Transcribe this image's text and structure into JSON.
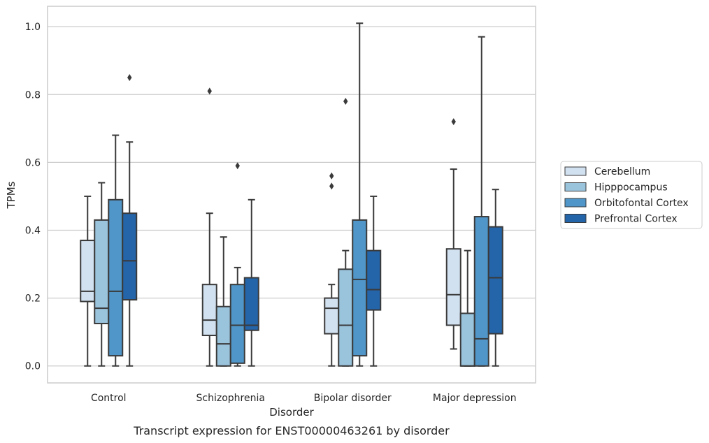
{
  "chart_data": {
    "type": "box",
    "title": "",
    "caption": "Transcript expression for ENST00000463261 by disorder",
    "xlabel": "Disorder",
    "ylabel": "TPMs",
    "ylim": [
      -0.05,
      1.06
    ],
    "yticks": [
      0.0,
      0.2,
      0.4,
      0.6,
      0.8,
      1.0
    ],
    "ytick_labels": [
      "0.0",
      "0.2",
      "0.4",
      "0.6",
      "0.8",
      "1.0"
    ],
    "grid": "horizontal",
    "legend_position": "right",
    "categories": [
      "Control",
      "Schizophrenia",
      "Bipolar disorder",
      "Major depression"
    ],
    "series": [
      {
        "name": "Cerebellum",
        "color": "#d2e1f0",
        "boxes": [
          {
            "whisker_low": 0.0,
            "q1": 0.19,
            "median": 0.22,
            "q3": 0.37,
            "whisker_high": 0.5,
            "outliers": []
          },
          {
            "whisker_low": 0.0,
            "q1": 0.09,
            "median": 0.135,
            "q3": 0.24,
            "whisker_high": 0.45,
            "outliers": [
              0.81
            ]
          },
          {
            "whisker_low": 0.0,
            "q1": 0.095,
            "median": 0.17,
            "q3": 0.2,
            "whisker_high": 0.24,
            "outliers": [
              0.56,
              0.53
            ]
          },
          {
            "whisker_low": 0.05,
            "q1": 0.12,
            "median": 0.21,
            "q3": 0.345,
            "whisker_high": 0.58,
            "outliers": [
              0.72
            ]
          }
        ]
      },
      {
        "name": "Hipppocampus",
        "color": "#9ac3dc",
        "boxes": [
          {
            "whisker_low": 0.0,
            "q1": 0.125,
            "median": 0.17,
            "q3": 0.43,
            "whisker_high": 0.54,
            "outliers": []
          },
          {
            "whisker_low": 0.0,
            "q1": 0.0,
            "median": 0.065,
            "q3": 0.175,
            "whisker_high": 0.38,
            "outliers": []
          },
          {
            "whisker_low": 0.0,
            "q1": 0.0,
            "median": 0.12,
            "q3": 0.285,
            "whisker_high": 0.34,
            "outliers": [
              0.78
            ]
          },
          {
            "whisker_low": 0.0,
            "q1": 0.0,
            "median": 0.0,
            "q3": 0.155,
            "whisker_high": 0.34,
            "outliers": []
          }
        ]
      },
      {
        "name": "Orbitofontal Cortex",
        "color": "#5096c8",
        "boxes": [
          {
            "whisker_low": 0.0,
            "q1": 0.03,
            "median": 0.22,
            "q3": 0.49,
            "whisker_high": 0.68,
            "outliers": []
          },
          {
            "whisker_low": 0.0,
            "q1": 0.008,
            "median": 0.12,
            "q3": 0.24,
            "whisker_high": 0.29,
            "outliers": [
              0.59
            ]
          },
          {
            "whisker_low": 0.0,
            "q1": 0.03,
            "median": 0.255,
            "q3": 0.43,
            "whisker_high": 1.01,
            "outliers": []
          },
          {
            "whisker_low": 0.0,
            "q1": 0.0,
            "median": 0.08,
            "q3": 0.44,
            "whisker_high": 0.97,
            "outliers": []
          }
        ]
      },
      {
        "name": "Prefrontal Cortex",
        "color": "#2464a8",
        "boxes": [
          {
            "whisker_low": 0.0,
            "q1": 0.195,
            "median": 0.31,
            "q3": 0.45,
            "whisker_high": 0.66,
            "outliers": [
              0.85
            ]
          },
          {
            "whisker_low": 0.0,
            "q1": 0.105,
            "median": 0.12,
            "q3": 0.26,
            "whisker_high": 0.49,
            "outliers": []
          },
          {
            "whisker_low": 0.0,
            "q1": 0.165,
            "median": 0.225,
            "q3": 0.34,
            "whisker_high": 0.5,
            "outliers": []
          },
          {
            "whisker_low": 0.0,
            "q1": 0.095,
            "median": 0.26,
            "q3": 0.41,
            "whisker_high": 0.52,
            "outliers": []
          }
        ]
      }
    ]
  }
}
